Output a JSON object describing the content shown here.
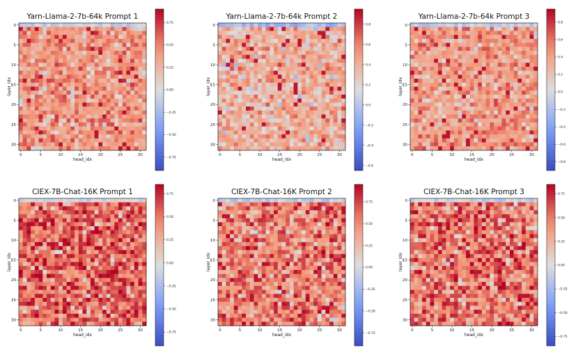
{
  "figure": {
    "rows": 2,
    "cols": 3
  },
  "colormap": {
    "name": "coolwarm",
    "low": "#3b4cc0",
    "mid": "#dddddd",
    "high": "#b40426"
  },
  "chart_data": [
    {
      "type": "heatmap",
      "title": "Yarn-Llama-2-7b-64k Prompt 1",
      "xlabel": "head_idx",
      "ylabel": "layer_idx",
      "x_ticks": [
        0,
        5,
        10,
        15,
        20,
        25,
        30
      ],
      "y_ticks": [
        0,
        5,
        10,
        15,
        20,
        25,
        30
      ],
      "grid_size": [
        32,
        32
      ],
      "vmin": -0.9,
      "vmax": 0.9,
      "colorbar_ticks": [
        -0.75,
        -0.5,
        -0.25,
        0.0,
        0.25,
        0.5,
        0.75
      ],
      "colorbar_labels": [
        "−0.75",
        "−0.50",
        "−0.25",
        "0.00",
        "0.25",
        "0.50",
        "0.75"
      ],
      "value_mean": 0.42,
      "value_spread": 0.2,
      "seed": 11
    },
    {
      "type": "heatmap",
      "title": "Yarn-Llama-2-7b-64k Prompt 2",
      "xlabel": "head_idx",
      "ylabel": "layer_idx",
      "x_ticks": [
        0,
        5,
        10,
        15,
        20,
        25,
        30
      ],
      "y_ticks": [
        0,
        5,
        10,
        15,
        20,
        25,
        30
      ],
      "grid_size": [
        32,
        32
      ],
      "vmin": -0.65,
      "vmax": 0.95,
      "colorbar_ticks": [
        -0.6,
        -0.4,
        -0.2,
        0.0,
        0.2,
        0.4,
        0.6,
        0.8
      ],
      "colorbar_labels": [
        "−0.6",
        "−0.4",
        "−0.2",
        "0.0",
        "0.2",
        "0.4",
        "0.6",
        "0.8"
      ],
      "value_mean": 0.42,
      "value_spread": 0.2,
      "seed": 23
    },
    {
      "type": "heatmap",
      "title": "Yarn-Llama-2-7b-64k Prompt 3",
      "xlabel": "head_idx",
      "ylabel": "layer_idx",
      "x_ticks": [
        0,
        5,
        10,
        15,
        20,
        25,
        30
      ],
      "y_ticks": [
        0,
        5,
        10,
        15,
        20,
        25,
        30
      ],
      "grid_size": [
        32,
        32
      ],
      "vmin": -0.9,
      "vmax": 0.95,
      "colorbar_ticks": [
        -0.8,
        -0.6,
        -0.4,
        -0.2,
        0.0,
        0.2,
        0.4,
        0.6,
        0.8
      ],
      "colorbar_labels": [
        "−0.8",
        "−0.6",
        "−0.4",
        "−0.2",
        "0.0",
        "0.2",
        "0.4",
        "0.6",
        "0.8"
      ],
      "value_mean": 0.44,
      "value_spread": 0.22,
      "seed": 37
    },
    {
      "type": "heatmap",
      "title": "CIEX-7B-Chat-16K Prompt 1",
      "xlabel": "head_idx",
      "ylabel": "layer_idx",
      "x_ticks": [
        0,
        5,
        10,
        15,
        20,
        25,
        30
      ],
      "y_ticks": [
        0,
        5,
        10,
        15,
        20,
        25,
        30
      ],
      "grid_size": [
        32,
        32
      ],
      "vmin": -0.9,
      "vmax": 0.85,
      "colorbar_ticks": [
        -0.75,
        -0.5,
        -0.25,
        0.0,
        0.25,
        0.5,
        0.75
      ],
      "colorbar_labels": [
        "−0.75",
        "−0.50",
        "−0.25",
        "0.00",
        "0.25",
        "0.50",
        "0.75"
      ],
      "value_mean": 0.55,
      "value_spread": 0.26,
      "seed": 51
    },
    {
      "type": "heatmap",
      "title": "CIEX-7B-Chat-16K Prompt 2",
      "xlabel": "head_idx",
      "ylabel": "layer_idx",
      "x_ticks": [
        0,
        5,
        10,
        15,
        20,
        25,
        30
      ],
      "y_ticks": [
        0,
        5,
        10,
        15,
        20,
        25,
        30
      ],
      "grid_size": [
        32,
        32
      ],
      "vmin": -0.9,
      "vmax": 0.95,
      "colorbar_ticks": [
        -0.75,
        -0.5,
        -0.25,
        0.0,
        0.25,
        0.5,
        0.75
      ],
      "colorbar_labels": [
        "−0.75",
        "−0.50",
        "−0.25",
        "0.00",
        "0.25",
        "0.50",
        "0.75"
      ],
      "value_mean": 0.55,
      "value_spread": 0.26,
      "seed": 67
    },
    {
      "type": "heatmap",
      "title": "CIEX-7B-Chat-16K Prompt 3",
      "xlabel": "head_idx",
      "ylabel": "layer_idx",
      "x_ticks": [
        0,
        5,
        10,
        15,
        20,
        25,
        30
      ],
      "y_ticks": [
        0,
        5,
        10,
        15,
        20,
        25,
        30
      ],
      "grid_size": [
        32,
        32
      ],
      "vmin": -0.85,
      "vmax": 0.85,
      "colorbar_ticks": [
        -0.75,
        -0.5,
        -0.25,
        0.0,
        0.25,
        0.5,
        0.75
      ],
      "colorbar_labels": [
        "−0.75",
        "−0.50",
        "−0.25",
        "0.00",
        "0.25",
        "0.50",
        "0.75"
      ],
      "value_mean": 0.52,
      "value_spread": 0.27,
      "seed": 83
    }
  ]
}
